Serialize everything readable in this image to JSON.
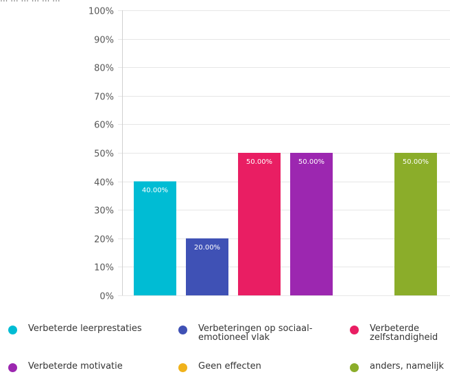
{
  "chart_data": {
    "type": "bar",
    "title": "... ... ... ... ... ...",
    "categories": [
      "Verbeterde leerprestaties",
      "Verbeteringen op sociaal-emotioneel vlak",
      "Verbeterde zelfstandigheid",
      "Verbeterde motivatie",
      "Geen effecten",
      "anders, namelijk"
    ],
    "values": [
      40,
      20,
      50,
      50,
      0,
      50
    ],
    "data_labels": [
      "40.00%",
      "20.00%",
      "50.00%",
      "50.00%",
      "",
      "50.00%"
    ],
    "colors": [
      "#00bcd4",
      "#3f51b5",
      "#e91e63",
      "#9c27b0",
      "#f0b21b",
      "#8bad2a"
    ],
    "ylim": [
      0,
      100
    ],
    "yticks": [
      "0%",
      "10%",
      "20%",
      "30%",
      "40%",
      "50%",
      "60%",
      "70%",
      "80%",
      "90%",
      "100%"
    ],
    "grid": true,
    "legend_position": "bottom"
  }
}
